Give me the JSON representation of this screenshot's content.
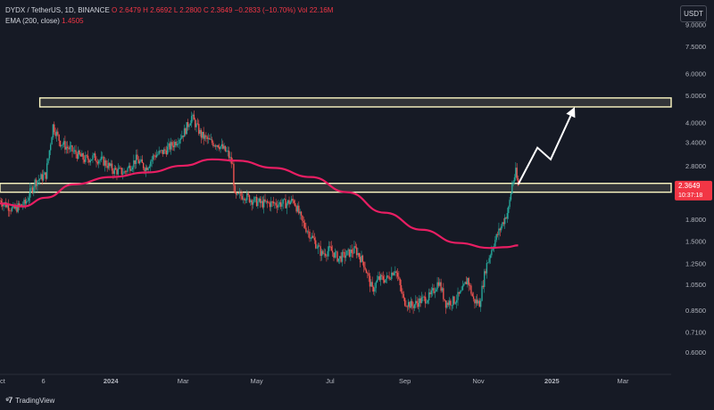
{
  "legend": {
    "symbol": "DYDX / TetherUS, 1D, BINANCE",
    "open": "O 2.6479",
    "high": "H 2.6692",
    "low": "L 2.2800",
    "close": "C 2.3649",
    "change": "−0.2833 (−10.70%)",
    "volume": "Vol 22.16M",
    "ema_label": "EMA (200, close)",
    "ema_value": "1.4505"
  },
  "currency_button": "USDT",
  "brand": {
    "name": "TradingView",
    "logo_icon": "tradingview-logo-icon"
  },
  "price_tag": {
    "price": "2.3649",
    "countdown": "10:37:18"
  },
  "colors": {
    "background": "#161a25",
    "up": "#26a69a",
    "down": "#ef5350",
    "ema": "#e91e63",
    "price_tag": "#f23645",
    "zone_fill": "#fff9c4",
    "arrow": "#ffffff"
  },
  "chart_data": {
    "type": "candlestick",
    "title": "DYDX / TetherUS, 1D, BINANCE",
    "y_scale": "log",
    "ylim": [
      0.5,
      11
    ],
    "y_ticks": [
      "9.0000",
      "7.5000",
      "6.0000",
      "5.0000",
      "4.0000",
      "3.4000",
      "2.8000",
      "2.3649",
      "1.8000",
      "1.5000",
      "1.2500",
      "1.0500",
      "0.8500",
      "0.7100",
      "0.6000"
    ],
    "x_labels": [
      "Oct",
      "6",
      "2024",
      "Mar",
      "May",
      "Jul",
      "Sep",
      "Nov",
      "2025",
      "Mar"
    ],
    "x_label_dates": [
      "2023-10-01",
      "2023-11-06",
      "2024-01-01",
      "2024-03-01",
      "2024-05-01",
      "2024-07-01",
      "2024-09-01",
      "2024-11-01",
      "2025-01-01",
      "2025-03-01"
    ],
    "xlim": [
      "2023-10-01",
      "2025-04-10"
    ],
    "price_path": [
      [
        "2023-10-01",
        2.1
      ],
      [
        "2023-10-12",
        1.95
      ],
      [
        "2023-10-22",
        2.05
      ],
      [
        "2023-10-30",
        2.45
      ],
      [
        "2023-11-08",
        2.6
      ],
      [
        "2023-11-14",
        3.9
      ],
      [
        "2023-11-20",
        3.4
      ],
      [
        "2023-11-26",
        3.25
      ],
      [
        "2023-12-03",
        3.1
      ],
      [
        "2023-12-10",
        2.95
      ],
      [
        "2023-12-18",
        3.0
      ],
      [
        "2023-12-26",
        2.9
      ],
      [
        "2024-01-03",
        2.7
      ],
      [
        "2024-01-12",
        2.65
      ],
      [
        "2024-01-22",
        2.95
      ],
      [
        "2024-01-30",
        2.75
      ],
      [
        "2024-02-06",
        3.05
      ],
      [
        "2024-02-14",
        3.15
      ],
      [
        "2024-02-22",
        3.35
      ],
      [
        "2024-03-02",
        3.7
      ],
      [
        "2024-03-08",
        4.2
      ],
      [
        "2024-03-16",
        3.6
      ],
      [
        "2024-03-24",
        3.4
      ],
      [
        "2024-03-30",
        3.35
      ],
      [
        "2024-04-07",
        3.1
      ],
      [
        "2024-04-11",
        2.8
      ],
      [
        "2024-04-13",
        2.15
      ],
      [
        "2024-04-20",
        2.2
      ],
      [
        "2024-04-28",
        2.1
      ],
      [
        "2024-05-05",
        2.05
      ],
      [
        "2024-05-15",
        2.05
      ],
      [
        "2024-05-25",
        2.05
      ],
      [
        "2024-06-01",
        2.1
      ],
      [
        "2024-06-08",
        1.75
      ],
      [
        "2024-06-16",
        1.55
      ],
      [
        "2024-06-24",
        1.35
      ],
      [
        "2024-07-01",
        1.4
      ],
      [
        "2024-07-08",
        1.3
      ],
      [
        "2024-07-15",
        1.35
      ],
      [
        "2024-07-22",
        1.4
      ],
      [
        "2024-07-29",
        1.25
      ],
      [
        "2024-08-05",
        1.0
      ],
      [
        "2024-08-10",
        1.1
      ],
      [
        "2024-08-17",
        1.1
      ],
      [
        "2024-08-24",
        1.2
      ],
      [
        "2024-08-31",
        0.92
      ],
      [
        "2024-09-07",
        0.88
      ],
      [
        "2024-09-14",
        0.92
      ],
      [
        "2024-09-22",
        0.95
      ],
      [
        "2024-09-29",
        1.08
      ],
      [
        "2024-10-05",
        0.9
      ],
      [
        "2024-10-12",
        0.92
      ],
      [
        "2024-10-18",
        0.98
      ],
      [
        "2024-10-23",
        1.1
      ],
      [
        "2024-10-28",
        0.92
      ],
      [
        "2024-11-02",
        0.9
      ],
      [
        "2024-11-07",
        1.2
      ],
      [
        "2024-11-13",
        1.45
      ],
      [
        "2024-11-20",
        1.7
      ],
      [
        "2024-11-26",
        1.95
      ],
      [
        "2024-11-29",
        2.4
      ],
      [
        "2024-12-02",
        2.65
      ],
      [
        "2024-12-04",
        2.36
      ]
    ],
    "ema200": [
      [
        "2023-10-01",
        2.05
      ],
      [
        "2023-10-20",
        2.0
      ],
      [
        "2023-11-08",
        2.15
      ],
      [
        "2023-12-01",
        2.4
      ],
      [
        "2024-01-01",
        2.55
      ],
      [
        "2024-02-01",
        2.65
      ],
      [
        "2024-03-01",
        2.8
      ],
      [
        "2024-03-25",
        2.95
      ],
      [
        "2024-04-15",
        2.92
      ],
      [
        "2024-05-15",
        2.75
      ],
      [
        "2024-06-15",
        2.55
      ],
      [
        "2024-07-15",
        2.25
      ],
      [
        "2024-08-15",
        1.9
      ],
      [
        "2024-09-15",
        1.65
      ],
      [
        "2024-10-15",
        1.48
      ],
      [
        "2024-11-10",
        1.42
      ],
      [
        "2024-11-25",
        1.43
      ],
      [
        "2024-12-04",
        1.4505
      ]
    ],
    "zones": [
      {
        "low": 4.55,
        "high": 4.9
      },
      {
        "low": 2.25,
        "high": 2.42
      }
    ],
    "projection": [
      [
        "2024-12-04",
        2.4
      ],
      [
        "2024-12-20",
        3.25
      ],
      [
        "2024-12-31",
        2.95
      ],
      [
        "2025-01-20",
        4.55
      ]
    ]
  }
}
